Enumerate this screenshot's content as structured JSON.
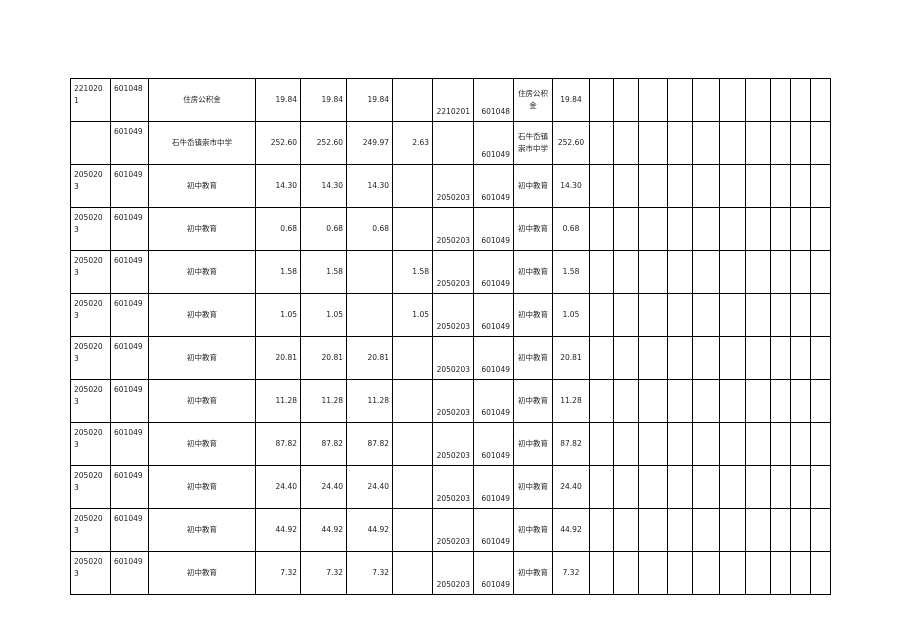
{
  "rows": [
    [
      "2210201",
      "601048",
      "住房公积金",
      "19.84",
      "19.84",
      "19.84",
      "",
      "2210201",
      "601048",
      "住房公积金",
      "19.84"
    ],
    [
      "",
      "601049",
      "石牛岙镇崇市中学",
      "252.60",
      "252.60",
      "249.97",
      "2.63",
      "",
      "601049",
      "石牛岙镇崇市中学",
      "252.60"
    ],
    [
      "2050203",
      "601049",
      "初中教育",
      "14.30",
      "14.30",
      "14.30",
      "",
      "2050203",
      "601049",
      "初中教育",
      "14.30"
    ],
    [
      "2050203",
      "601049",
      "初中教育",
      "0.68",
      "0.68",
      "0.68",
      "",
      "2050203",
      "601049",
      "初中教育",
      "0.68"
    ],
    [
      "2050203",
      "601049",
      "初中教育",
      "1.58",
      "1.58",
      "",
      "1.58",
      "2050203",
      "601049",
      "初中教育",
      "1.58"
    ],
    [
      "2050203",
      "601049",
      "初中教育",
      "1.05",
      "1.05",
      "",
      "1.05",
      "2050203",
      "601049",
      "初中教育",
      "1.05"
    ],
    [
      "2050203",
      "601049",
      "初中教育",
      "20.81",
      "20.81",
      "20.81",
      "",
      "2050203",
      "601049",
      "初中教育",
      "20.81"
    ],
    [
      "2050203",
      "601049",
      "初中教育",
      "11.28",
      "11.28",
      "11.28",
      "",
      "2050203",
      "601049",
      "初中教育",
      "11.28"
    ],
    [
      "2050203",
      "601049",
      "初中教育",
      "87.82",
      "87.82",
      "87.82",
      "",
      "2050203",
      "601049",
      "初中教育",
      "87.82"
    ],
    [
      "2050203",
      "601049",
      "初中教育",
      "24.40",
      "24.40",
      "24.40",
      "",
      "2050203",
      "601049",
      "初中教育",
      "24.40"
    ],
    [
      "2050203",
      "601049",
      "初中教育",
      "44.92",
      "44.92",
      "44.92",
      "",
      "2050203",
      "601049",
      "初中教育",
      "44.92"
    ],
    [
      "2050203",
      "601049",
      "初中教育",
      "7.32",
      "7.32",
      "7.32",
      "",
      "2050203",
      "601049",
      "初中教育",
      "7.32"
    ]
  ]
}
